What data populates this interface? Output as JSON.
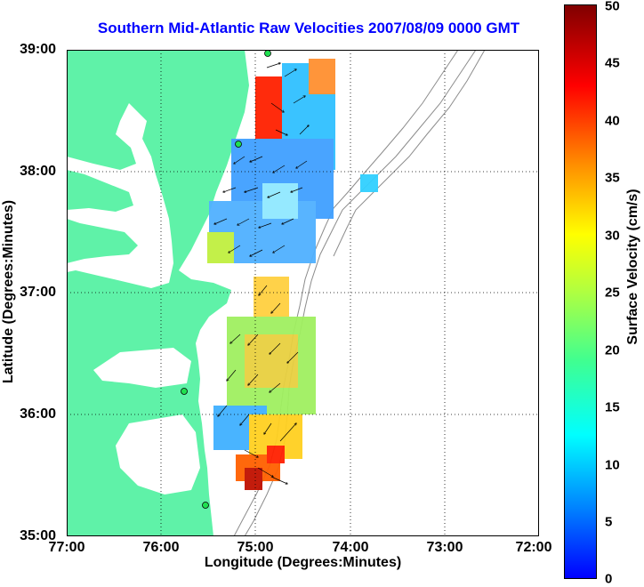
{
  "title": "Southern Mid-Atlantic Raw Velocities 2007/08/09 0000 GMT",
  "xlabel": "Longitude (Degrees:Minutes)",
  "ylabel": "Latitude (Degrees:Minutes)",
  "x_ticks": [
    "77:00",
    "76:00",
    "75:00",
    "74:00",
    "73:00",
    "72:00"
  ],
  "y_ticks": [
    "39:00",
    "38:00",
    "37:00",
    "36:00",
    "35:00"
  ],
  "colorbar": {
    "label": "Surface Velocity (cm/s)",
    "ticks": [
      "50",
      "45",
      "40",
      "35",
      "30",
      "25",
      "20",
      "15",
      "10",
      "5",
      "0"
    ],
    "range": [
      0,
      50
    ]
  },
  "colors": {
    "land": "#5ff2a8",
    "water": "#ffffff",
    "title": "#0000ff",
    "grid": "#000000",
    "isobath": "#8c8c8c"
  },
  "sites": [
    "site-north",
    "site-mid",
    "site-south-1",
    "site-south-2"
  ]
}
